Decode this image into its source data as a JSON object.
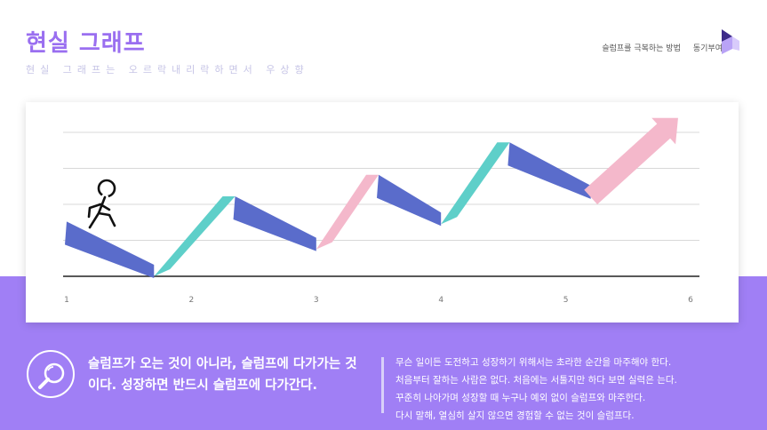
{
  "header": {
    "title": "현실 그래프",
    "subtitle": "현실 그래프는 오르락내리락하면서 우상향",
    "nav": [
      "슬럼프를 극복하는 방법",
      "동기부여"
    ]
  },
  "colors": {
    "accent": "#9a6ff0",
    "band": "#a07ff5",
    "blue": "#5a6ccb",
    "teal": "#5ecfc9",
    "pink": "#f4b8cb"
  },
  "chart_data": {
    "type": "line",
    "x_ticks": [
      "1",
      "2",
      "3",
      "4",
      "5",
      "6"
    ],
    "xlim": [
      1,
      6
    ],
    "ylim": [
      0,
      4
    ],
    "gridlines": [
      0,
      1,
      2,
      3,
      4
    ],
    "points": [
      {
        "x": 1.0,
        "y": 1.2
      },
      {
        "x": 1.7,
        "y": 0.0
      },
      {
        "x": 2.35,
        "y": 1.9
      },
      {
        "x": 3.0,
        "y": 0.75
      },
      {
        "x": 3.5,
        "y": 2.5
      },
      {
        "x": 4.0,
        "y": 1.45
      },
      {
        "x": 4.55,
        "y": 3.4
      },
      {
        "x": 5.2,
        "y": 2.2
      },
      {
        "x": 5.9,
        "y": 4.4
      }
    ],
    "segment_colors": [
      "blue",
      "teal",
      "blue",
      "pink",
      "blue",
      "teal",
      "blue",
      "pink"
    ],
    "figure_label": "walking-person"
  },
  "footer": {
    "quote": "슬럼프가 오는 것이 아니라, 슬럼프에 다가가는 것이다. 성장하면 반드시 슬럼프에 다가간다.",
    "body_lines": [
      "무슨 일이든 도전하고 성장하기 위해서는 초라한 순간을 마주해야 한다.",
      "처음부터 잘하는 사람은 없다. 처음에는 서툴지만 하다 보면 실력은 는다.",
      "꾸준히 나아가며 성장할 때 누구나 예외 없이 슬럼프와 마주한다.",
      "다시 말해, 열심히 살지 않으면 경험할 수 없는 것이 슬럼프다."
    ]
  }
}
